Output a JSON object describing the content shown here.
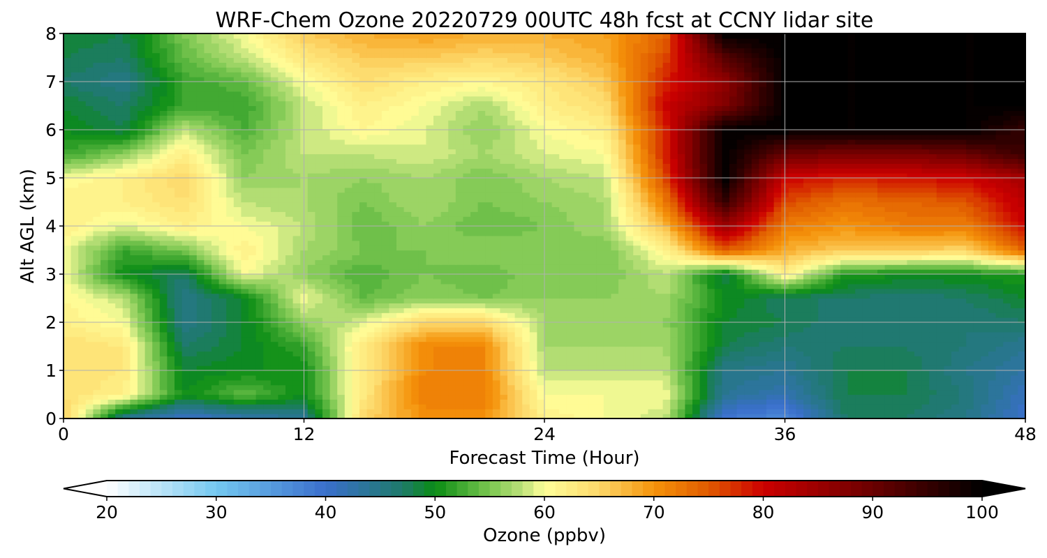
{
  "chart_data": {
    "type": "heatmap",
    "title": "WRF-Chem Ozone  20220729 00UTC 48h fcst at CCNY lidar site",
    "xlabel": "Forecast Time (Hour)",
    "ylabel": "Alt AGL (km)",
    "xlim": [
      0,
      48
    ],
    "ylim": [
      0,
      8
    ],
    "xticks": [
      0,
      12,
      24,
      36,
      48
    ],
    "yticks": [
      0,
      1,
      2,
      3,
      4,
      5,
      6,
      7,
      8
    ],
    "grid": true,
    "colorbar": {
      "label": "Ozone  (ppbv)",
      "min": 20,
      "max": 100,
      "ticks": [
        20,
        30,
        40,
        50,
        60,
        70,
        80,
        90,
        100
      ],
      "extend": "both",
      "color_stops": [
        {
          "v": 20,
          "c": "#ffffff"
        },
        {
          "v": 30,
          "c": "#74c8f0"
        },
        {
          "v": 40,
          "c": "#3a6fcc"
        },
        {
          "v": 47,
          "c": "#1e7a6a"
        },
        {
          "v": 50,
          "c": "#0a8c14"
        },
        {
          "v": 55,
          "c": "#7ac650"
        },
        {
          "v": 58,
          "c": "#bde27a"
        },
        {
          "v": 60,
          "c": "#ffff9a"
        },
        {
          "v": 65,
          "c": "#fdd86a"
        },
        {
          "v": 70,
          "c": "#f5930a"
        },
        {
          "v": 75,
          "c": "#e05a00"
        },
        {
          "v": 80,
          "c": "#cc0000"
        },
        {
          "v": 90,
          "c": "#6a0000"
        },
        {
          "v": 100,
          "c": "#000000"
        }
      ]
    },
    "times": [
      0,
      3,
      6,
      9,
      12,
      15,
      18,
      21,
      24,
      27,
      30,
      33,
      36,
      39,
      42,
      45,
      48
    ],
    "altitudes": [
      0,
      0.5,
      1,
      1.5,
      2,
      2.5,
      3,
      3.5,
      4,
      4.5,
      5,
      5.5,
      6,
      6.5,
      7,
      7.5,
      8
    ],
    "ozone_ppbv": [
      [
        66,
        44,
        40,
        42,
        44,
        65,
        70,
        70,
        62,
        60,
        58,
        39,
        37,
        47,
        47,
        45,
        40
      ],
      [
        64,
        62,
        50,
        54,
        50,
        63,
        72,
        72,
        60,
        60,
        60,
        44,
        42,
        48,
        48,
        46,
        41
      ],
      [
        64,
        63,
        49,
        50,
        50,
        63,
        71,
        71,
        58,
        58,
        58,
        45,
        44,
        48,
        48,
        45,
        43
      ],
      [
        64,
        63,
        47,
        49,
        52,
        63,
        71,
        71,
        57,
        57,
        57,
        48,
        46,
        47,
        47,
        46,
        44
      ],
      [
        62,
        60,
        45,
        49,
        56,
        59,
        65,
        65,
        57,
        56,
        56,
        49,
        48,
        46,
        46,
        46,
        47
      ],
      [
        61,
        58,
        45,
        49,
        60,
        54,
        56,
        55,
        56,
        56,
        57,
        50,
        47,
        47,
        46,
        47,
        49
      ],
      [
        60,
        50,
        47,
        60,
        56,
        53,
        55,
        54,
        56,
        55,
        58,
        48,
        62,
        51,
        50,
        50,
        51
      ],
      [
        60,
        52,
        55,
        62,
        57,
        55,
        55,
        56,
        56,
        55,
        61,
        75,
        68,
        66,
        66,
        65,
        74
      ],
      [
        62,
        59,
        62,
        60,
        58,
        54,
        56,
        54,
        55,
        57,
        67,
        85,
        72,
        70,
        72,
        72,
        80
      ],
      [
        62,
        62,
        64,
        58,
        57,
        55,
        57,
        55,
        56,
        57,
        72,
        95,
        76,
        73,
        74,
        75,
        82
      ],
      [
        60,
        62,
        65,
        56,
        57,
        56,
        57,
        55,
        57,
        58,
        76,
        100,
        80,
        78,
        79,
        80,
        84
      ],
      [
        52,
        56,
        62,
        55,
        58,
        58,
        59,
        57,
        59,
        60,
        78,
        100,
        90,
        88,
        88,
        90,
        95
      ],
      [
        50,
        48,
        58,
        53,
        58,
        61,
        59,
        56,
        60,
        62,
        78,
        100,
        100,
        100,
        100,
        100,
        95
      ],
      [
        49,
        47,
        52,
        52,
        58,
        62,
        60,
        57,
        62,
        64,
        80,
        88,
        100,
        100,
        100,
        100,
        100
      ],
      [
        47,
        45,
        52,
        54,
        60,
        64,
        62,
        61,
        63,
        66,
        78,
        86,
        100,
        100,
        100,
        100,
        100
      ],
      [
        48,
        47,
        54,
        58,
        63,
        66,
        66,
        65,
        66,
        68,
        76,
        92,
        100,
        100,
        100,
        100,
        100
      ],
      [
        49,
        48,
        55,
        60,
        66,
        68,
        69,
        68,
        68,
        69,
        74,
        100,
        100,
        100,
        100,
        100,
        100
      ]
    ]
  }
}
